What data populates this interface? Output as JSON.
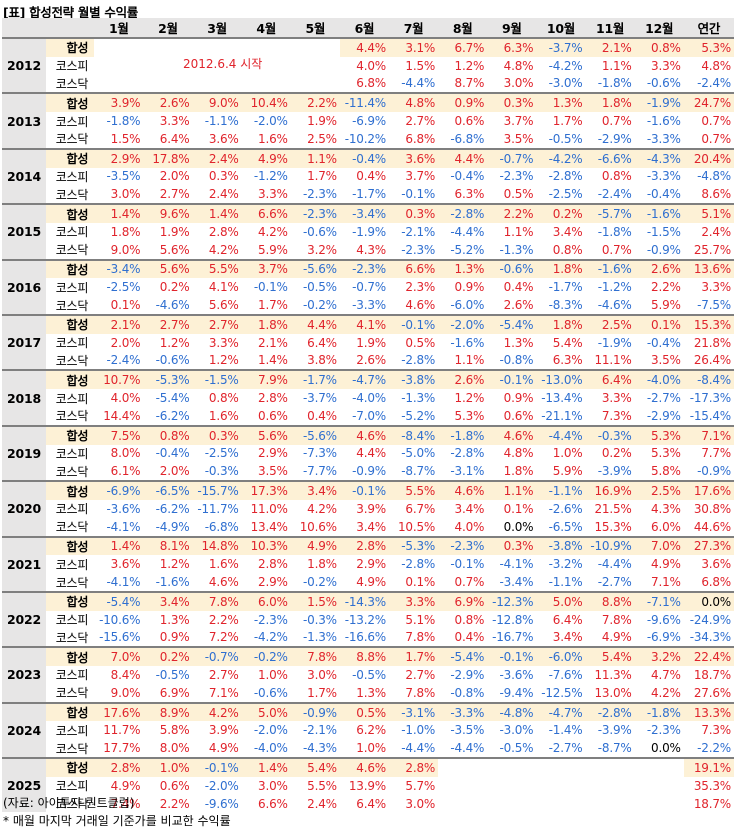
{
  "title": "[표] 합성전략 월별 수익률",
  "header": {
    "year_label": "",
    "series_label": "",
    "months": [
      "1월",
      "2월",
      "3월",
      "4월",
      "5월",
      "6월",
      "7월",
      "8월",
      "9월",
      "10월",
      "11월",
      "12월"
    ],
    "annual": "연간"
  },
  "series_names": [
    "합성",
    "코스피",
    "코스닥"
  ],
  "start_note": "2012.6.4 시작",
  "years": [
    {
      "year": "2012",
      "rows": [
        [
          "",
          "",
          "",
          "",
          "",
          "4.4%",
          "3.1%",
          "6.7%",
          "6.3%",
          "-3.7%",
          "2.1%",
          "0.8%",
          "5.3%"
        ],
        [
          "",
          "",
          "",
          "",
          "",
          "4.0%",
          "1.5%",
          "1.2%",
          "4.8%",
          "-4.2%",
          "1.1%",
          "3.3%",
          "4.8%"
        ],
        [
          "",
          "",
          "",
          "",
          "",
          "6.8%",
          "-4.4%",
          "8.7%",
          "3.0%",
          "-3.0%",
          "-1.8%",
          "-0.6%",
          "-2.4%"
        ]
      ]
    },
    {
      "year": "2013",
      "rows": [
        [
          "3.9%",
          "2.6%",
          "9.0%",
          "10.4%",
          "2.2%",
          "-11.4%",
          "4.8%",
          "0.9%",
          "0.3%",
          "1.3%",
          "1.8%",
          "-1.9%",
          "24.7%"
        ],
        [
          "-1.8%",
          "3.3%",
          "-1.1%",
          "-2.0%",
          "1.9%",
          "-6.9%",
          "2.7%",
          "0.6%",
          "3.7%",
          "1.7%",
          "0.7%",
          "-1.6%",
          "0.7%"
        ],
        [
          "1.5%",
          "6.4%",
          "3.6%",
          "1.6%",
          "2.5%",
          "-10.2%",
          "6.8%",
          "-6.8%",
          "3.5%",
          "-0.5%",
          "-2.9%",
          "-3.3%",
          "0.7%"
        ]
      ]
    },
    {
      "year": "2014",
      "rows": [
        [
          "2.9%",
          "17.8%",
          "2.4%",
          "4.9%",
          "1.1%",
          "-0.4%",
          "3.6%",
          "4.4%",
          "-0.7%",
          "-4.2%",
          "-6.6%",
          "-4.3%",
          "20.4%"
        ],
        [
          "-3.5%",
          "2.0%",
          "0.3%",
          "-1.2%",
          "1.7%",
          "0.4%",
          "3.7%",
          "-0.4%",
          "-2.3%",
          "-2.8%",
          "0.8%",
          "-3.3%",
          "-4.8%"
        ],
        [
          "3.0%",
          "2.7%",
          "2.4%",
          "3.3%",
          "-2.3%",
          "-1.7%",
          "-0.1%",
          "6.3%",
          "0.5%",
          "-2.5%",
          "-2.4%",
          "-0.4%",
          "8.6%"
        ]
      ]
    },
    {
      "year": "2015",
      "rows": [
        [
          "1.4%",
          "9.6%",
          "1.4%",
          "6.6%",
          "-2.3%",
          "-3.4%",
          "0.3%",
          "-2.8%",
          "2.2%",
          "0.2%",
          "-5.7%",
          "-1.6%",
          "5.1%"
        ],
        [
          "1.8%",
          "1.9%",
          "2.8%",
          "4.2%",
          "-0.6%",
          "-1.9%",
          "-2.1%",
          "-4.4%",
          "1.1%",
          "3.4%",
          "-1.8%",
          "-1.5%",
          "2.4%"
        ],
        [
          "9.0%",
          "5.6%",
          "4.2%",
          "5.9%",
          "3.2%",
          "4.3%",
          "-2.3%",
          "-5.2%",
          "-1.3%",
          "0.8%",
          "0.7%",
          "-0.9%",
          "25.7%"
        ]
      ]
    },
    {
      "year": "2016",
      "rows": [
        [
          "-3.4%",
          "5.6%",
          "5.5%",
          "3.7%",
          "-5.6%",
          "-2.3%",
          "6.6%",
          "1.3%",
          "-0.6%",
          "1.8%",
          "-1.6%",
          "2.6%",
          "13.6%"
        ],
        [
          "-2.5%",
          "0.2%",
          "4.1%",
          "-0.1%",
          "-0.5%",
          "-0.7%",
          "2.3%",
          "0.9%",
          "0.4%",
          "-1.7%",
          "-1.2%",
          "2.2%",
          "3.3%"
        ],
        [
          "0.1%",
          "-4.6%",
          "5.6%",
          "1.7%",
          "-0.2%",
          "-3.3%",
          "4.6%",
          "-6.0%",
          "2.6%",
          "-8.3%",
          "-4.6%",
          "5.9%",
          "-7.5%"
        ]
      ]
    },
    {
      "year": "2017",
      "rows": [
        [
          "2.1%",
          "2.7%",
          "2.7%",
          "1.8%",
          "4.4%",
          "4.1%",
          "-0.1%",
          "-2.0%",
          "-5.4%",
          "1.8%",
          "2.5%",
          "0.1%",
          "15.3%"
        ],
        [
          "2.0%",
          "1.2%",
          "3.3%",
          "2.1%",
          "6.4%",
          "1.9%",
          "0.5%",
          "-1.6%",
          "1.3%",
          "5.4%",
          "-1.9%",
          "-0.4%",
          "21.8%"
        ],
        [
          "-2.4%",
          "-0.6%",
          "1.2%",
          "1.4%",
          "3.8%",
          "2.6%",
          "-2.8%",
          "1.1%",
          "-0.8%",
          "6.3%",
          "11.1%",
          "3.5%",
          "26.4%"
        ]
      ]
    },
    {
      "year": "2018",
      "rows": [
        [
          "10.7%",
          "-5.3%",
          "-1.5%",
          "7.9%",
          "-1.7%",
          "-4.7%",
          "-3.8%",
          "2.6%",
          "-0.1%",
          "-13.0%",
          "6.4%",
          "-4.0%",
          "-8.4%"
        ],
        [
          "4.0%",
          "-5.4%",
          "0.8%",
          "2.8%",
          "-3.7%",
          "-4.0%",
          "-1.3%",
          "1.2%",
          "0.9%",
          "-13.4%",
          "3.3%",
          "-2.7%",
          "-17.3%"
        ],
        [
          "14.4%",
          "-6.2%",
          "1.6%",
          "0.6%",
          "0.4%",
          "-7.0%",
          "-5.2%",
          "5.3%",
          "0.6%",
          "-21.1%",
          "7.3%",
          "-2.9%",
          "-15.4%"
        ]
      ]
    },
    {
      "year": "2019",
      "rows": [
        [
          "7.5%",
          "0.8%",
          "0.3%",
          "5.6%",
          "-5.6%",
          "4.6%",
          "-8.4%",
          "-1.8%",
          "4.6%",
          "-4.4%",
          "-0.3%",
          "5.3%",
          "7.1%"
        ],
        [
          "8.0%",
          "-0.4%",
          "-2.5%",
          "2.9%",
          "-7.3%",
          "4.4%",
          "-5.0%",
          "-2.8%",
          "4.8%",
          "1.0%",
          "0.2%",
          "5.3%",
          "7.7%"
        ],
        [
          "6.1%",
          "2.0%",
          "-0.3%",
          "3.5%",
          "-7.7%",
          "-0.9%",
          "-8.7%",
          "-3.1%",
          "1.8%",
          "5.9%",
          "-3.9%",
          "5.8%",
          "-0.9%"
        ]
      ]
    },
    {
      "year": "2020",
      "rows": [
        [
          "-6.9%",
          "-6.5%",
          "-15.7%",
          "17.3%",
          "3.4%",
          "-0.1%",
          "5.5%",
          "4.6%",
          "1.1%",
          "-1.1%",
          "16.9%",
          "2.5%",
          "17.6%"
        ],
        [
          "-3.6%",
          "-6.2%",
          "-11.7%",
          "11.0%",
          "4.2%",
          "3.9%",
          "6.7%",
          "3.4%",
          "0.1%",
          "-2.6%",
          "21.5%",
          "4.3%",
          "30.8%"
        ],
        [
          "-4.1%",
          "-4.9%",
          "-6.8%",
          "13.4%",
          "10.6%",
          "3.4%",
          "10.5%",
          "4.0%",
          "0.0%",
          "-6.5%",
          "15.3%",
          "6.0%",
          "44.6%"
        ]
      ]
    },
    {
      "year": "2021",
      "rows": [
        [
          "1.4%",
          "8.1%",
          "14.8%",
          "10.3%",
          "4.9%",
          "2.8%",
          "-5.3%",
          "-2.3%",
          "0.3%",
          "-3.8%",
          "-10.9%",
          "7.0%",
          "27.3%"
        ],
        [
          "3.6%",
          "1.2%",
          "1.6%",
          "2.8%",
          "1.8%",
          "2.9%",
          "-2.8%",
          "-0.1%",
          "-4.1%",
          "-3.2%",
          "-4.4%",
          "4.9%",
          "3.6%"
        ],
        [
          "-4.1%",
          "-1.6%",
          "4.6%",
          "2.9%",
          "-0.2%",
          "4.9%",
          "0.1%",
          "0.7%",
          "-3.4%",
          "-1.1%",
          "-2.7%",
          "7.1%",
          "6.8%"
        ]
      ]
    },
    {
      "year": "2022",
      "rows": [
        [
          "-5.4%",
          "3.4%",
          "7.8%",
          "6.0%",
          "1.5%",
          "-14.3%",
          "3.3%",
          "6.9%",
          "-12.3%",
          "5.0%",
          "8.8%",
          "-7.1%",
          "0.0%"
        ],
        [
          "-10.6%",
          "1.3%",
          "2.2%",
          "-2.3%",
          "-0.3%",
          "-13.2%",
          "5.1%",
          "0.8%",
          "-12.8%",
          "6.4%",
          "7.8%",
          "-9.6%",
          "-24.9%"
        ],
        [
          "-15.6%",
          "0.9%",
          "7.2%",
          "-4.2%",
          "-1.3%",
          "-16.6%",
          "7.8%",
          "0.4%",
          "-16.7%",
          "3.4%",
          "4.9%",
          "-6.9%",
          "-34.3%"
        ]
      ]
    },
    {
      "year": "2023",
      "rows": [
        [
          "7.0%",
          "0.2%",
          "-0.7%",
          "-0.2%",
          "7.8%",
          "8.8%",
          "1.7%",
          "-5.4%",
          "-0.1%",
          "-6.0%",
          "5.4%",
          "3.2%",
          "22.4%"
        ],
        [
          "8.4%",
          "-0.5%",
          "2.7%",
          "1.0%",
          "3.0%",
          "-0.5%",
          "2.7%",
          "-2.9%",
          "-3.6%",
          "-7.6%",
          "11.3%",
          "4.7%",
          "18.7%"
        ],
        [
          "9.0%",
          "6.9%",
          "7.1%",
          "-0.6%",
          "1.7%",
          "1.3%",
          "7.8%",
          "-0.8%",
          "-9.4%",
          "-12.5%",
          "13.0%",
          "4.2%",
          "27.6%"
        ]
      ]
    },
    {
      "year": "2024",
      "rows": [
        [
          "17.6%",
          "8.9%",
          "4.2%",
          "5.0%",
          "-0.9%",
          "0.5%",
          "-3.1%",
          "-3.3%",
          "-4.8%",
          "-4.7%",
          "-2.8%",
          "-1.8%",
          "13.3%"
        ],
        [
          "11.7%",
          "5.8%",
          "3.9%",
          "-2.0%",
          "-2.1%",
          "6.2%",
          "-1.0%",
          "-3.5%",
          "-3.0%",
          "-1.4%",
          "-3.9%",
          "-2.3%",
          "7.3%"
        ],
        [
          "17.7%",
          "8.0%",
          "4.9%",
          "-4.0%",
          "-4.3%",
          "1.0%",
          "-4.4%",
          "-4.4%",
          "-0.5%",
          "-2.7%",
          "-8.7%",
          "0.0%",
          "-2.2%"
        ]
      ]
    },
    {
      "year": "2025",
      "rows": [
        [
          "2.8%",
          "1.0%",
          "-0.1%",
          "1.4%",
          "5.4%",
          "4.6%",
          "2.8%",
          "",
          "",
          "",
          "",
          "",
          "19.1%"
        ],
        [
          "4.9%",
          "0.6%",
          "-2.0%",
          "3.0%",
          "5.5%",
          "13.9%",
          "5.7%",
          "",
          "",
          "",
          "",
          "",
          "35.3%"
        ],
        [
          "7.4%",
          "2.2%",
          "-9.6%",
          "6.6%",
          "2.4%",
          "6.4%",
          "3.0%",
          "",
          "",
          "",
          "",
          "",
          "18.7%"
        ]
      ]
    }
  ],
  "footer": {
    "source": "(자료: 아이투자 퀀트클럽)",
    "note": "* 매월 마지막 거래일 기준가를 비교한 수익률"
  },
  "colors": {
    "positive": "#e0242c",
    "negative": "#2f6fd0",
    "highlight": "#fdf1d6",
    "header_bg": "#e7e6e6"
  }
}
